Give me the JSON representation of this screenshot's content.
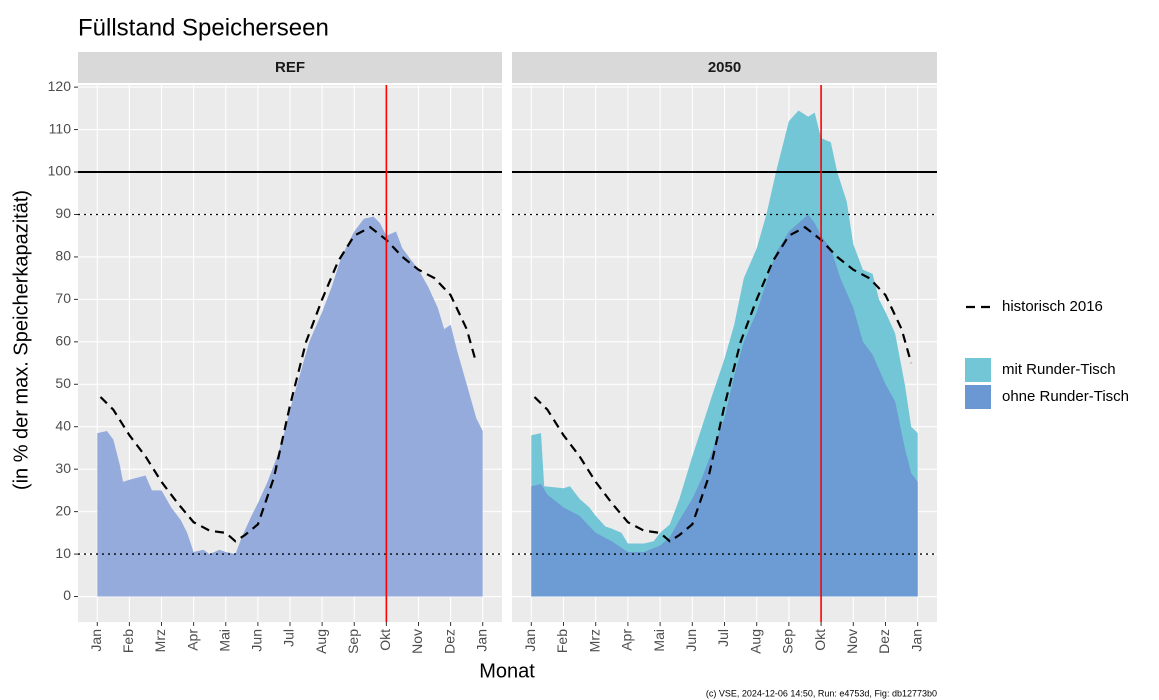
{
  "title": "Füllstand Speicherseen",
  "ylabel": "(in % der max. Speicherkapazität)",
  "xlabel": "Monat",
  "caption": "(c) VSE, 2024-12-06 14:50, Run: e4753d, Fig: db12773b0",
  "chart_data": [
    {
      "type": "area",
      "title": "REF",
      "xlim": [
        -0.6,
        12.6
      ],
      "ylim": [
        -6,
        120.5
      ],
      "xticks": [
        {
          "value": 0,
          "label": "Jan"
        },
        {
          "value": 1,
          "label": "Feb"
        },
        {
          "value": 2,
          "label": "Mrz"
        },
        {
          "value": 3,
          "label": "Apr"
        },
        {
          "value": 4,
          "label": "Mai"
        },
        {
          "value": 5,
          "label": "Jun"
        },
        {
          "value": 6,
          "label": "Jul"
        },
        {
          "value": 7,
          "label": "Aug"
        },
        {
          "value": 8,
          "label": "Sep"
        },
        {
          "value": 9,
          "label": "Okt"
        },
        {
          "value": 10,
          "label": "Nov"
        },
        {
          "value": 11,
          "label": "Dez"
        },
        {
          "value": 12,
          "label": "Jan"
        }
      ],
      "yticks": [
        0,
        10,
        20,
        30,
        40,
        50,
        60,
        70,
        80,
        90,
        100,
        110,
        120
      ],
      "grid": true,
      "hlines": [
        {
          "value": 100,
          "style": "solid",
          "color": "#000000"
        },
        {
          "value": 90,
          "style": "dotted",
          "color": "#000000"
        },
        {
          "value": 10,
          "style": "dotted",
          "color": "#000000"
        }
      ],
      "vline": {
        "value": 9,
        "color": "#ff0000"
      },
      "series": [
        {
          "name": "ohne Runder-Tisch",
          "kind": "area",
          "color": "#8fa8db",
          "alpha": 0.95,
          "x": [
            0,
            0.3,
            0.5,
            0.7,
            0.8,
            1,
            1.5,
            1.7,
            2,
            2.3,
            2.6,
            2.8,
            3,
            3.3,
            3.5,
            3.8,
            4,
            4.3,
            4.5,
            4.8,
            5,
            5.3,
            5.6,
            5.8,
            6,
            6.3,
            6.6,
            7,
            7.3,
            7.6,
            8,
            8.3,
            8.6,
            8.8,
            9,
            9.3,
            9.5,
            9.8,
            10,
            10.3,
            10.6,
            10.8,
            11,
            11.2,
            11.5,
            11.8,
            12
          ],
          "values": [
            38.5,
            39,
            37,
            31,
            27,
            27.5,
            28.5,
            25,
            25,
            21,
            18,
            15,
            10.5,
            11,
            10,
            11,
            10.5,
            10,
            14,
            19,
            22,
            27,
            33,
            38,
            44,
            52,
            60,
            67,
            73,
            80,
            86,
            89,
            89.5,
            88,
            85,
            86,
            82,
            79,
            77,
            73,
            68,
            63,
            64,
            58,
            50,
            42,
            39
          ]
        },
        {
          "name": "historisch 2016",
          "kind": "line",
          "style": "dashed",
          "color": "#000000",
          "x": [
            0.1,
            0.5,
            1,
            1.5,
            2,
            2.5,
            3,
            3.5,
            4,
            4.3,
            4.6,
            5,
            5.5,
            6,
            6.5,
            7,
            7.5,
            8,
            8.5,
            9,
            9.5,
            10,
            10.5,
            11,
            11.5,
            11.8
          ],
          "values": [
            47,
            44,
            38,
            33,
            27,
            22,
            17.5,
            15.5,
            15,
            13,
            14.5,
            17,
            28,
            45,
            60,
            70,
            79,
            85,
            87,
            84,
            80,
            77,
            75,
            71,
            63,
            55
          ]
        }
      ]
    },
    {
      "type": "area",
      "title": "2050",
      "xlim": [
        -0.6,
        12.6
      ],
      "ylim": [
        -6,
        120.5
      ],
      "xticks": [
        {
          "value": 0,
          "label": "Jan"
        },
        {
          "value": 1,
          "label": "Feb"
        },
        {
          "value": 2,
          "label": "Mrz"
        },
        {
          "value": 3,
          "label": "Apr"
        },
        {
          "value": 4,
          "label": "Mai"
        },
        {
          "value": 5,
          "label": "Jun"
        },
        {
          "value": 6,
          "label": "Jul"
        },
        {
          "value": 7,
          "label": "Aug"
        },
        {
          "value": 8,
          "label": "Sep"
        },
        {
          "value": 9,
          "label": "Okt"
        },
        {
          "value": 10,
          "label": "Nov"
        },
        {
          "value": 11,
          "label": "Dez"
        },
        {
          "value": 12,
          "label": "Jan"
        }
      ],
      "yticks": [
        0,
        10,
        20,
        30,
        40,
        50,
        60,
        70,
        80,
        90,
        100,
        110,
        120
      ],
      "grid": true,
      "hlines": [
        {
          "value": 100,
          "style": "solid",
          "color": "#000000"
        },
        {
          "value": 90,
          "style": "dotted",
          "color": "#000000"
        },
        {
          "value": 10,
          "style": "dotted",
          "color": "#000000"
        }
      ],
      "vline": {
        "value": 9,
        "color": "#ff0000"
      },
      "series": [
        {
          "name": "mit Runder-Tisch",
          "kind": "area",
          "color": "#73c6d6",
          "alpha": 1,
          "x": [
            0,
            0.3,
            0.4,
            1,
            1.2,
            1.5,
            1.8,
            2,
            2.3,
            2.5,
            2.8,
            3,
            3.5,
            3.8,
            4,
            4.3,
            4.6,
            5,
            5.3,
            5.6,
            6,
            6.3,
            6.6,
            7,
            7.3,
            7.6,
            8,
            8.3,
            8.6,
            8.8,
            9,
            9.3,
            9.5,
            9.8,
            10,
            10.3,
            10.6,
            10.8,
            11,
            11.3,
            11.6,
            11.8,
            12
          ],
          "values": [
            38,
            38.5,
            26,
            25.5,
            26,
            23,
            21,
            19,
            16.5,
            16,
            15,
            12.5,
            12.5,
            13,
            15,
            17,
            23,
            33,
            40,
            47,
            56,
            64,
            75,
            82,
            90,
            100,
            112,
            114.5,
            113,
            114,
            108,
            107,
            100,
            93,
            83,
            77,
            76,
            70,
            67,
            62,
            50,
            40,
            38.5
          ]
        },
        {
          "name": "ohne Runder-Tisch",
          "kind": "area",
          "color": "#6b97d3",
          "alpha": 0.9,
          "x": [
            0,
            0.3,
            0.5,
            1,
            1.5,
            2,
            2.5,
            3,
            3.5,
            4,
            4.3,
            4.6,
            5,
            5.3,
            5.6,
            6,
            6.3,
            6.6,
            7,
            7.3,
            7.6,
            8,
            8.3,
            8.6,
            8.8,
            9,
            9.3,
            9.6,
            10,
            10.3,
            10.6,
            11,
            11.3,
            11.6,
            11.8,
            12
          ],
          "values": [
            26,
            26.5,
            24,
            21,
            19,
            15,
            13,
            10.5,
            10.5,
            12,
            14,
            18,
            23,
            28,
            34,
            42,
            52,
            60,
            67,
            74,
            81,
            86,
            88,
            90,
            88,
            85,
            82,
            75,
            68,
            60,
            57,
            50,
            46,
            35,
            29,
            27
          ]
        },
        {
          "name": "historisch 2016",
          "kind": "line",
          "style": "dashed",
          "color": "#000000",
          "x": [
            0.1,
            0.5,
            1,
            1.5,
            2,
            2.5,
            3,
            3.5,
            4,
            4.3,
            4.6,
            5,
            5.5,
            6,
            6.5,
            7,
            7.5,
            8,
            8.5,
            9,
            9.5,
            10,
            10.5,
            11,
            11.5,
            11.8
          ],
          "values": [
            47,
            44,
            38,
            33,
            27,
            22,
            17.5,
            15.5,
            15,
            13,
            14.5,
            17,
            28,
            45,
            60,
            70,
            79,
            85,
            87,
            84,
            80,
            77,
            75,
            71,
            63,
            55
          ]
        }
      ]
    }
  ]
}
